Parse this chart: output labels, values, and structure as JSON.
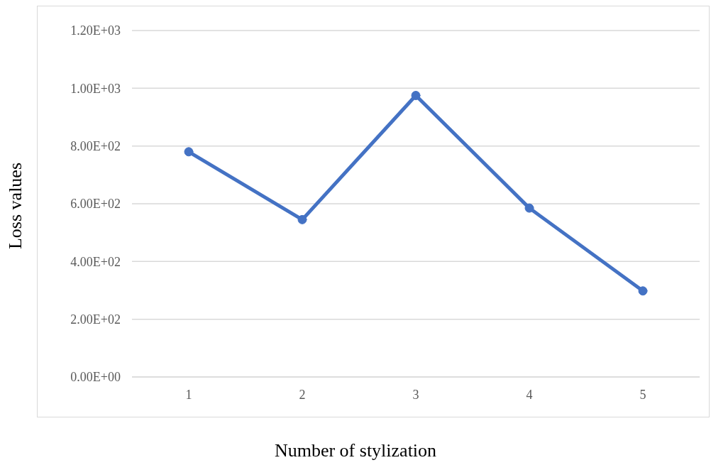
{
  "chart_data": {
    "type": "line",
    "xlabel": "Number of stylization",
    "ylabel": "Loss values",
    "categories": [
      "1",
      "2",
      "3",
      "4",
      "5"
    ],
    "series": [
      {
        "color": "#4472c4",
        "values": [
          780,
          545,
          975,
          585,
          298
        ]
      }
    ],
    "ylim": [
      0,
      1200
    ],
    "yticks": [
      {
        "value": 0,
        "label": "0.00E+00"
      },
      {
        "value": 200,
        "label": "2.00E+02"
      },
      {
        "value": 400,
        "label": "4.00E+02"
      },
      {
        "value": 600,
        "label": "6.00E+02"
      },
      {
        "value": 800,
        "label": "8.00E+02"
      },
      {
        "value": 1000,
        "label": "1.00E+03"
      },
      {
        "value": 1200,
        "label": "1.20E+03"
      }
    ],
    "grid": "y",
    "marker": "circle",
    "line_style": "solid",
    "legend": false
  }
}
